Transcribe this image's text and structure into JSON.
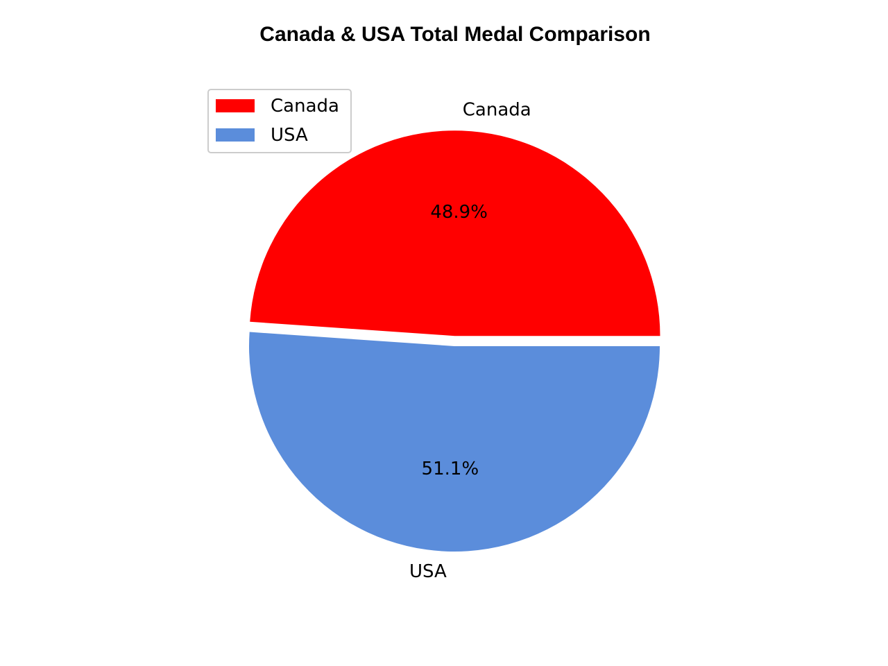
{
  "chart_data": {
    "type": "pie",
    "title": "Canada & USA Total Medal Comparison",
    "labels": [
      "Canada",
      "USA"
    ],
    "percent_labels": [
      "48.9%",
      "51.1%"
    ],
    "values": [
      48.9,
      51.1
    ],
    "colors": [
      "#ff0000",
      "#5b8ddb"
    ],
    "explode": [
      0.05,
      0
    ],
    "start_angle_deg": 0,
    "counterclockwise": true,
    "legend": {
      "location": "upper-left",
      "entries": [
        "Canada",
        "USA"
      ]
    }
  }
}
